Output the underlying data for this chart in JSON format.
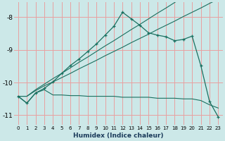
{
  "xlabel": "Humidex (Indice chaleur)",
  "bg_color": "#cce8e8",
  "grid_color": "#e8a0a0",
  "line_color": "#1a7060",
  "xlim": [
    -0.5,
    23.5
  ],
  "ylim": [
    -11.3,
    -7.55
  ],
  "xticks": [
    0,
    1,
    2,
    3,
    4,
    5,
    6,
    7,
    8,
    9,
    10,
    11,
    12,
    13,
    14,
    15,
    16,
    17,
    18,
    19,
    20,
    21,
    22,
    23
  ],
  "yticks": [
    -11,
    -10,
    -9,
    -8
  ],
  "series1_y": [
    -10.42,
    -10.63,
    -10.32,
    -10.18,
    -9.98,
    -9.72,
    -9.48,
    -9.28,
    -9.05,
    -8.82,
    -8.55,
    -8.28,
    -7.85,
    -8.05,
    -8.25,
    -8.48,
    -8.55,
    -8.6,
    -8.72,
    -8.68,
    -8.58,
    -9.48,
    -10.58,
    -11.05
  ],
  "series2_y": [
    -10.42,
    -10.42,
    -10.22,
    -10.05,
    -9.88,
    -9.72,
    -9.55,
    -9.38,
    -9.22,
    -9.05,
    -8.88,
    -8.72,
    -8.55,
    -8.38,
    -8.22,
    -8.05,
    -7.88,
    -7.72,
    -7.55,
    -7.38,
    -7.22,
    -7.05,
    -6.88,
    -6.72
  ],
  "series3_y": [
    -10.42,
    -10.42,
    -10.25,
    -10.1,
    -9.98,
    -9.85,
    -9.72,
    -9.58,
    -9.45,
    -9.32,
    -9.18,
    -9.05,
    -8.92,
    -8.78,
    -8.65,
    -8.52,
    -8.38,
    -8.25,
    -8.12,
    -7.98,
    -7.85,
    -7.72,
    -7.58,
    -7.45
  ],
  "series4_y": [
    -10.42,
    -10.63,
    -10.32,
    -10.22,
    -10.38,
    -10.38,
    -10.4,
    -10.4,
    -10.42,
    -10.42,
    -10.42,
    -10.42,
    -10.45,
    -10.45,
    -10.45,
    -10.45,
    -10.48,
    -10.48,
    -10.48,
    -10.5,
    -10.5,
    -10.55,
    -10.68,
    -10.78
  ]
}
